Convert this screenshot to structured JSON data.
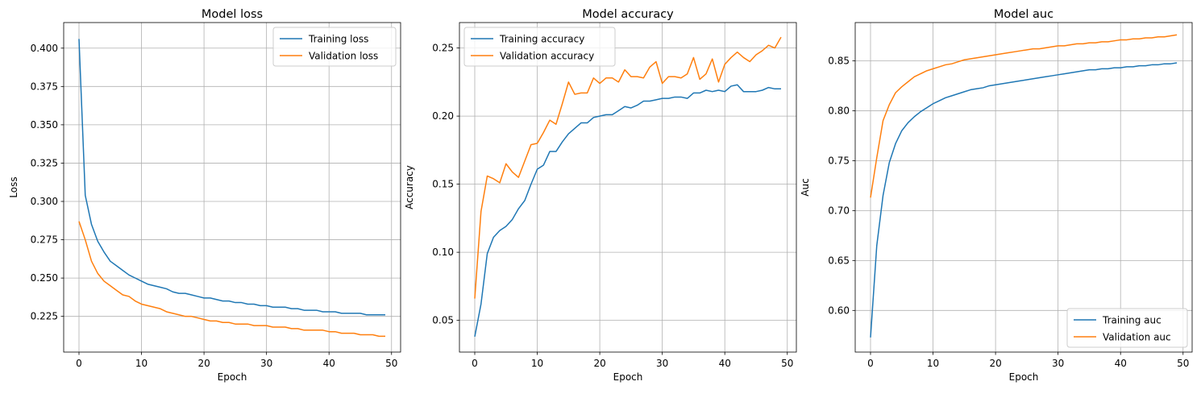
{
  "chart_data": [
    {
      "type": "line",
      "title": "Model loss",
      "xlabel": "Epoch",
      "ylabel": "Loss",
      "xlim": [
        -2.45,
        51.45
      ],
      "ylim": [
        0.2017,
        0.4167
      ],
      "xticks": [
        0,
        10,
        20,
        30,
        40,
        50
      ],
      "yticks": [
        0.225,
        0.25,
        0.275,
        0.3,
        0.325,
        0.35,
        0.375,
        0.4
      ],
      "yticklabels": [
        "0.225",
        "0.250",
        "0.275",
        "0.300",
        "0.325",
        "0.350",
        "0.375",
        "0.400"
      ],
      "grid": true,
      "legend_position": "top-right",
      "series": [
        {
          "name": "Training loss",
          "color": "#1f77b4",
          "x_start": 0,
          "values": [
            0.406,
            0.304,
            0.285,
            0.274,
            0.267,
            0.261,
            0.258,
            0.255,
            0.252,
            0.25,
            0.248,
            0.246,
            0.245,
            0.244,
            0.243,
            0.241,
            0.24,
            0.24,
            0.239,
            0.238,
            0.237,
            0.237,
            0.236,
            0.235,
            0.235,
            0.234,
            0.234,
            0.233,
            0.233,
            0.232,
            0.232,
            0.231,
            0.231,
            0.231,
            0.23,
            0.23,
            0.229,
            0.229,
            0.229,
            0.228,
            0.228,
            0.228,
            0.227,
            0.227,
            0.227,
            0.227,
            0.226,
            0.226,
            0.226,
            0.226
          ]
        },
        {
          "name": "Validation loss",
          "color": "#ff7f0e",
          "x_start": 0,
          "values": [
            0.287,
            0.275,
            0.261,
            0.253,
            0.248,
            0.245,
            0.242,
            0.239,
            0.238,
            0.235,
            0.233,
            0.232,
            0.231,
            0.23,
            0.228,
            0.227,
            0.226,
            0.225,
            0.225,
            0.224,
            0.223,
            0.222,
            0.222,
            0.221,
            0.221,
            0.22,
            0.22,
            0.22,
            0.219,
            0.219,
            0.219,
            0.218,
            0.218,
            0.218,
            0.217,
            0.217,
            0.216,
            0.216,
            0.216,
            0.216,
            0.215,
            0.215,
            0.214,
            0.214,
            0.214,
            0.213,
            0.213,
            0.213,
            0.212,
            0.212
          ]
        }
      ]
    },
    {
      "type": "line",
      "title": "Model accuracy",
      "xlabel": "Epoch",
      "ylabel": "Accuracy",
      "xlim": [
        -2.45,
        51.45
      ],
      "ylim": [
        0.0267,
        0.2687
      ],
      "xticks": [
        0,
        10,
        20,
        30,
        40,
        50
      ],
      "yticks": [
        0.05,
        0.1,
        0.15,
        0.2,
        0.25
      ],
      "yticklabels": [
        "0.05",
        "0.10",
        "0.15",
        "0.20",
        "0.25"
      ],
      "grid": true,
      "legend_position": "top-left",
      "series": [
        {
          "name": "Training accuracy",
          "color": "#1f77b4",
          "x_start": 0,
          "values": [
            0.038,
            0.062,
            0.099,
            0.111,
            0.116,
            0.119,
            0.124,
            0.132,
            0.138,
            0.15,
            0.161,
            0.164,
            0.174,
            0.174,
            0.181,
            0.187,
            0.191,
            0.195,
            0.195,
            0.199,
            0.2,
            0.201,
            0.201,
            0.204,
            0.207,
            0.206,
            0.208,
            0.211,
            0.211,
            0.212,
            0.213,
            0.213,
            0.214,
            0.214,
            0.213,
            0.217,
            0.217,
            0.219,
            0.218,
            0.219,
            0.218,
            0.222,
            0.223,
            0.218,
            0.218,
            0.218,
            0.219,
            0.221,
            0.22,
            0.22
          ]
        },
        {
          "name": "Validation accuracy",
          "color": "#ff7f0e",
          "x_start": 0,
          "values": [
            0.066,
            0.13,
            0.156,
            0.154,
            0.151,
            0.165,
            0.159,
            0.155,
            0.167,
            0.179,
            0.18,
            0.188,
            0.197,
            0.194,
            0.209,
            0.225,
            0.216,
            0.217,
            0.217,
            0.228,
            0.224,
            0.228,
            0.228,
            0.225,
            0.234,
            0.229,
            0.229,
            0.228,
            0.236,
            0.24,
            0.224,
            0.229,
            0.229,
            0.228,
            0.231,
            0.243,
            0.227,
            0.231,
            0.242,
            0.225,
            0.238,
            0.243,
            0.247,
            0.243,
            0.24,
            0.245,
            0.248,
            0.252,
            0.25,
            0.258
          ]
        }
      ]
    },
    {
      "type": "line",
      "title": "Model auc",
      "xlabel": "Epoch",
      "ylabel": "Auc",
      "xlim": [
        -2.45,
        51.45
      ],
      "ylim": [
        0.5583,
        0.8883
      ],
      "xticks": [
        0,
        10,
        20,
        30,
        40,
        50
      ],
      "yticks": [
        0.6,
        0.65,
        0.7,
        0.75,
        0.8,
        0.85
      ],
      "yticklabels": [
        "0.60",
        "0.65",
        "0.70",
        "0.75",
        "0.80",
        "0.85"
      ],
      "grid": true,
      "legend_position": "bottom-right",
      "series": [
        {
          "name": "Training auc",
          "color": "#1f77b4",
          "x_start": 0,
          "values": [
            0.573,
            0.665,
            0.715,
            0.748,
            0.767,
            0.78,
            0.788,
            0.794,
            0.799,
            0.803,
            0.807,
            0.81,
            0.813,
            0.815,
            0.817,
            0.819,
            0.821,
            0.822,
            0.823,
            0.825,
            0.826,
            0.827,
            0.828,
            0.829,
            0.83,
            0.831,
            0.832,
            0.833,
            0.834,
            0.835,
            0.836,
            0.837,
            0.838,
            0.839,
            0.84,
            0.841,
            0.841,
            0.842,
            0.842,
            0.843,
            0.843,
            0.844,
            0.844,
            0.845,
            0.845,
            0.846,
            0.846,
            0.847,
            0.847,
            0.848
          ]
        },
        {
          "name": "Validation auc",
          "color": "#ff7f0e",
          "x_start": 0,
          "values": [
            0.713,
            0.753,
            0.79,
            0.806,
            0.818,
            0.824,
            0.829,
            0.834,
            0.837,
            0.84,
            0.842,
            0.844,
            0.846,
            0.847,
            0.849,
            0.851,
            0.852,
            0.853,
            0.854,
            0.855,
            0.856,
            0.857,
            0.858,
            0.859,
            0.86,
            0.861,
            0.862,
            0.862,
            0.863,
            0.864,
            0.865,
            0.865,
            0.866,
            0.867,
            0.867,
            0.868,
            0.868,
            0.869,
            0.869,
            0.87,
            0.871,
            0.871,
            0.872,
            0.872,
            0.873,
            0.873,
            0.874,
            0.874,
            0.875,
            0.876
          ]
        }
      ]
    }
  ]
}
